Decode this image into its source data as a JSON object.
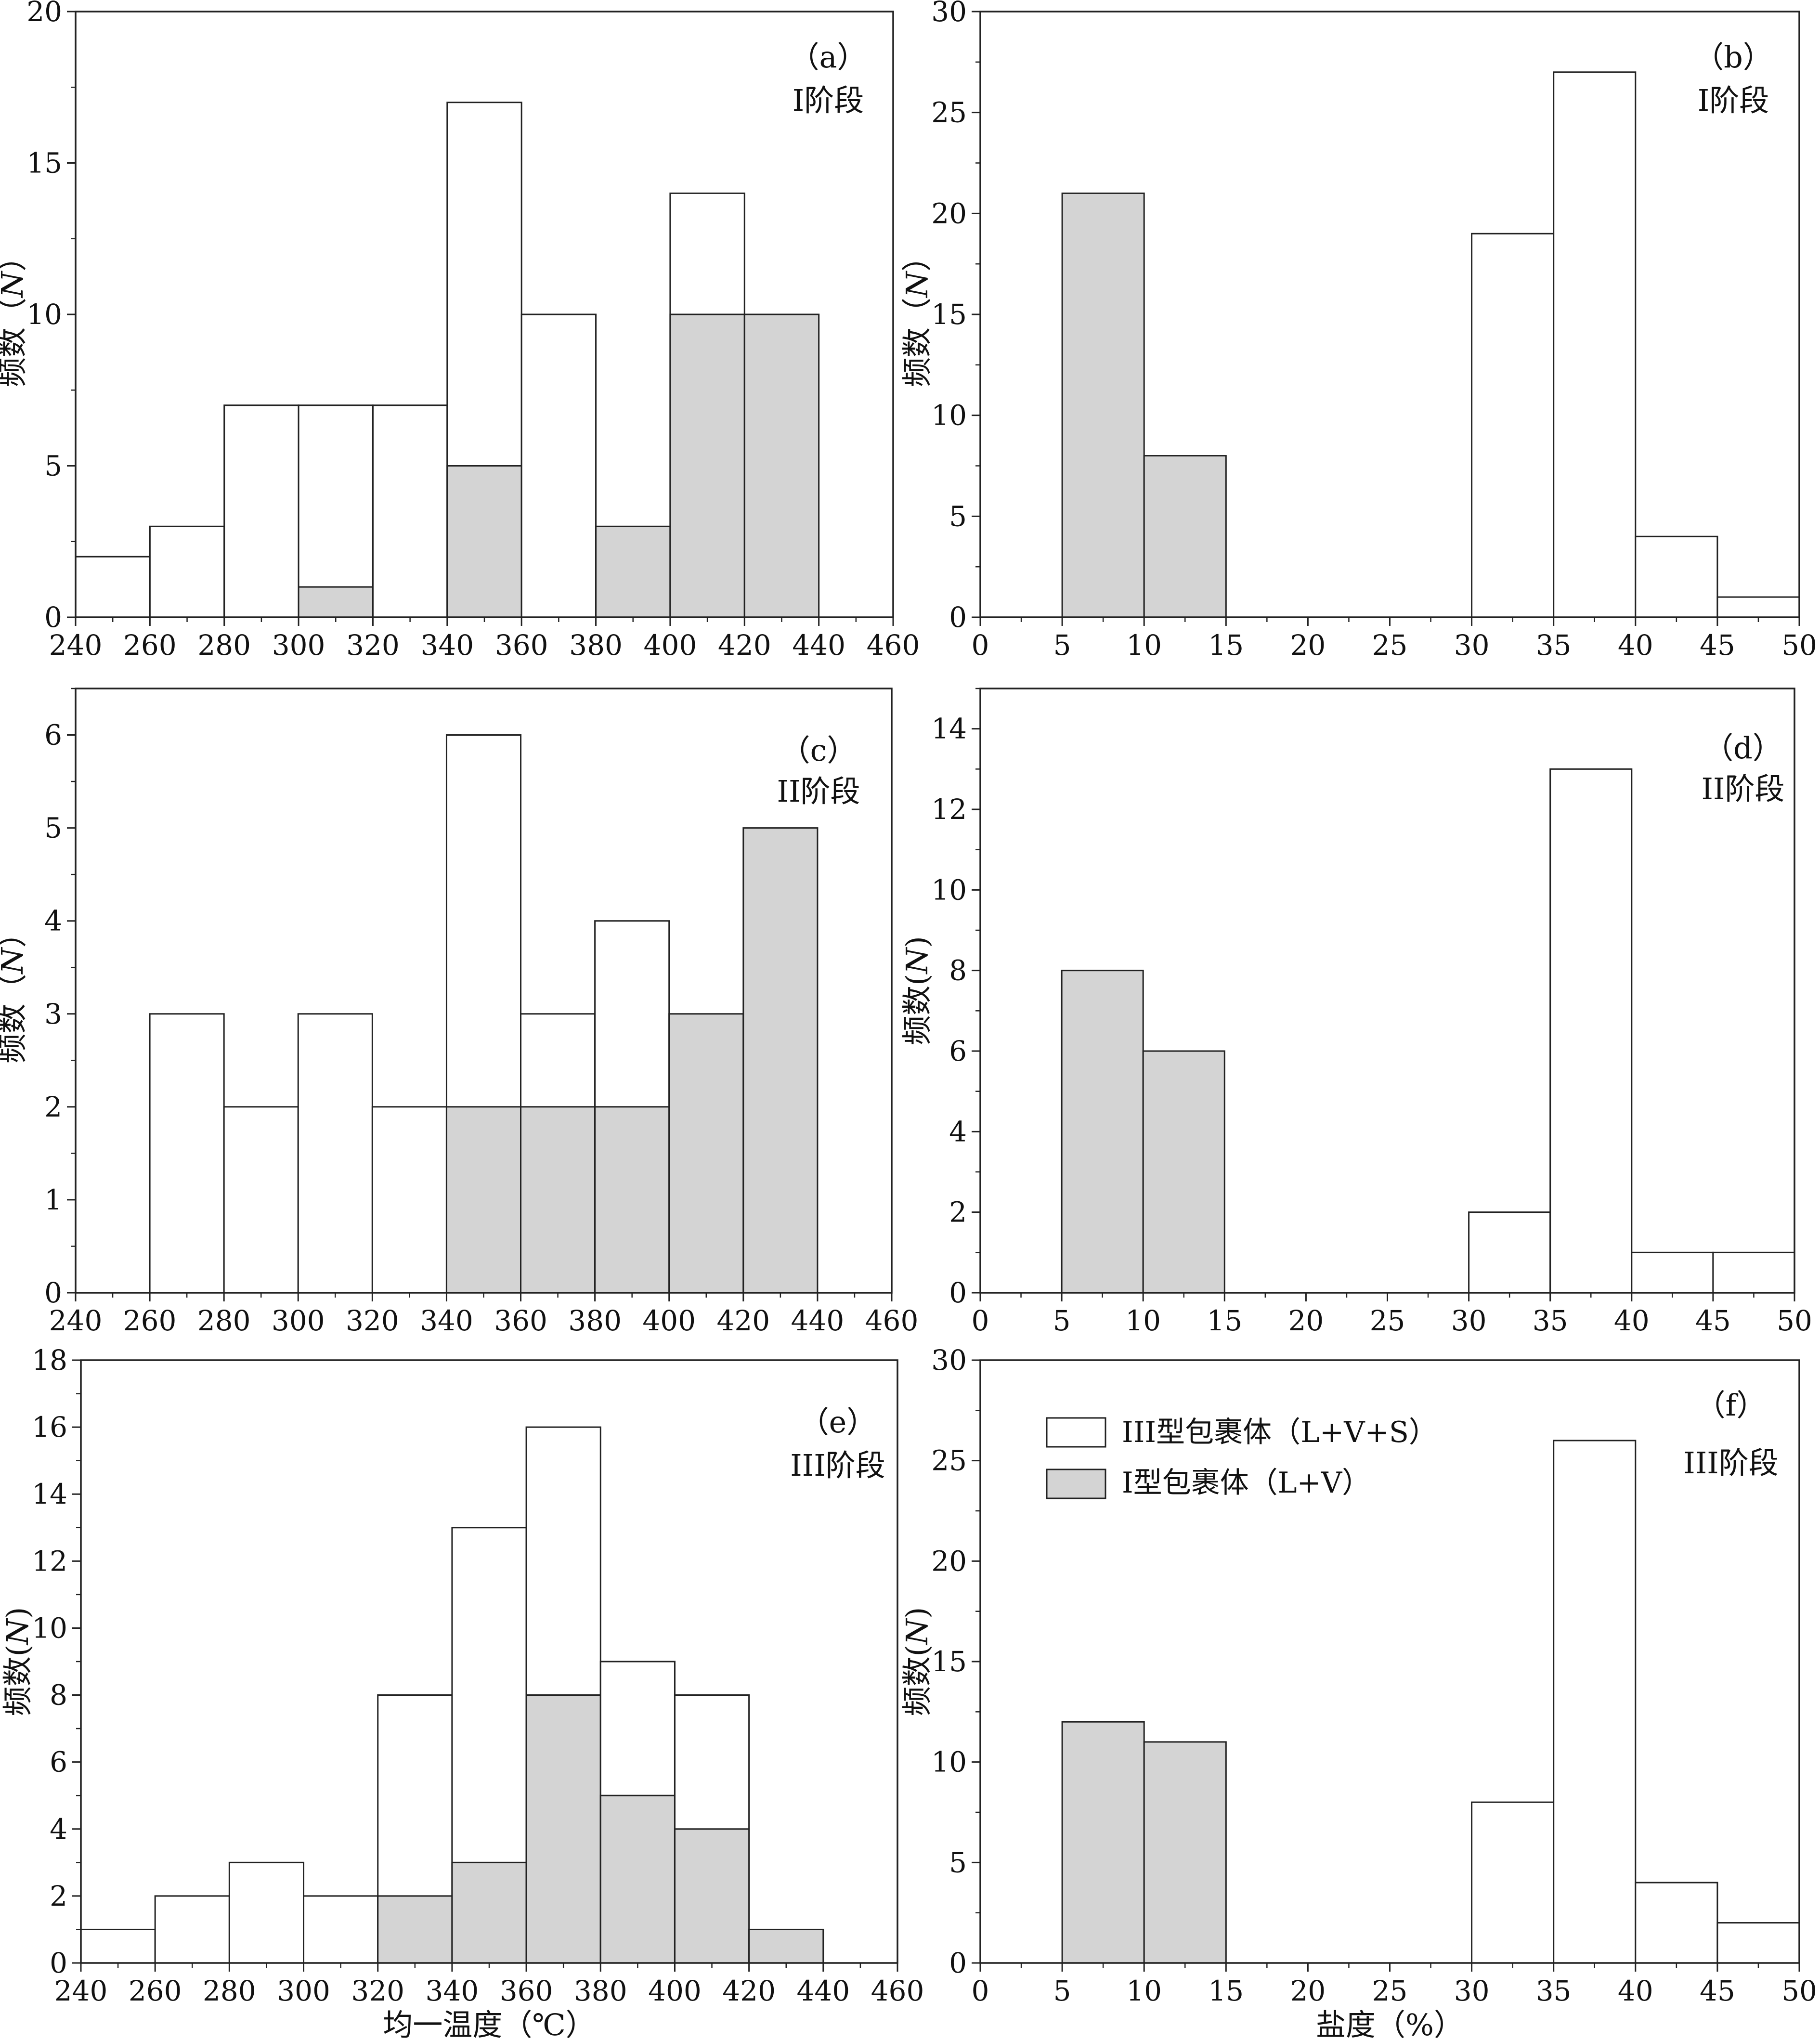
{
  "colors": {
    "gray_fill": "#d4d4d4",
    "white_fill": "#ffffff",
    "stroke": "#222222"
  },
  "legend": {
    "white_label": "III型包裹体（L+V+S）",
    "gray_label": "I型包裹体（L+V）"
  },
  "chart_data": [
    {
      "id": "a",
      "type": "bar",
      "panel_label": "（a）",
      "stage_label": "I阶段",
      "ylabel_text": "频数",
      "ylabel_unit": "（N）",
      "xlabel": "",
      "xlim": [
        240,
        460
      ],
      "ylim": [
        0,
        20
      ],
      "xticks": [
        240,
        260,
        280,
        300,
        320,
        340,
        360,
        380,
        400,
        420,
        440,
        460
      ],
      "yticks": [
        0,
        5,
        10,
        15,
        20
      ],
      "bin_width": 20,
      "bins": [
        240,
        260,
        280,
        300,
        320,
        340,
        360,
        380,
        400,
        420
      ],
      "totals": [
        2,
        3,
        7,
        7,
        7,
        17,
        10,
        3,
        14,
        10
      ],
      "gray": [
        0,
        0,
        0,
        1,
        0,
        5,
        0,
        3,
        10,
        10
      ]
    },
    {
      "id": "b",
      "type": "bar",
      "panel_label": "（b）",
      "stage_label": "I阶段",
      "ylabel_text": "频数",
      "ylabel_unit": "（N）",
      "xlabel": "",
      "xlim": [
        0,
        50
      ],
      "ylim": [
        0,
        30
      ],
      "xticks": [
        0,
        5,
        10,
        15,
        20,
        25,
        30,
        35,
        40,
        45,
        50
      ],
      "yticks": [
        0,
        5,
        10,
        15,
        20,
        25,
        30
      ],
      "bin_width": 5,
      "bins": [
        5,
        10,
        30,
        35,
        40,
        45
      ],
      "totals": [
        21,
        8,
        19,
        27,
        4,
        1
      ],
      "gray": [
        21,
        8,
        0,
        0,
        0,
        0
      ]
    },
    {
      "id": "c",
      "type": "bar",
      "panel_label": "（c）",
      "stage_label": "II阶段",
      "ylabel_text": "频数",
      "ylabel_unit": "（N）",
      "xlabel": "",
      "xlim": [
        240,
        460
      ],
      "ylim": [
        0,
        6.5
      ],
      "xticks": [
        240,
        260,
        280,
        300,
        320,
        340,
        360,
        380,
        400,
        420,
        440,
        460
      ],
      "yticks": [
        0,
        1,
        2,
        3,
        4,
        5,
        6
      ],
      "bin_width": 20,
      "bins": [
        260,
        280,
        300,
        320,
        340,
        360,
        380,
        400,
        420
      ],
      "totals": [
        3,
        2,
        3,
        2,
        6,
        3,
        4,
        3,
        5
      ],
      "gray": [
        0,
        0,
        0,
        0,
        2,
        2,
        2,
        3,
        5
      ]
    },
    {
      "id": "d",
      "type": "bar",
      "panel_label": "（d）",
      "stage_label": "II阶段",
      "ylabel_text": "频数",
      "ylabel_unit": "(N)",
      "xlabel": "",
      "xlim": [
        0,
        50
      ],
      "ylim": [
        0,
        15
      ],
      "xticks": [
        0,
        5,
        10,
        15,
        20,
        25,
        30,
        35,
        40,
        45,
        50
      ],
      "yticks": [
        0,
        2,
        4,
        6,
        8,
        10,
        12,
        14
      ],
      "bin_width": 5,
      "bins": [
        5,
        10,
        30,
        35,
        40,
        45
      ],
      "totals": [
        8,
        6,
        2,
        13,
        1,
        1
      ],
      "gray": [
        8,
        6,
        0,
        0,
        0,
        0
      ]
    },
    {
      "id": "e",
      "type": "bar",
      "panel_label": "（e）",
      "stage_label": "III阶段",
      "ylabel_text": "频数",
      "ylabel_unit": "(N)",
      "xlabel": "均一温度（℃）",
      "xlim": [
        240,
        460
      ],
      "ylim": [
        0,
        18
      ],
      "xticks": [
        240,
        260,
        280,
        300,
        320,
        340,
        360,
        380,
        400,
        420,
        440,
        460
      ],
      "yticks": [
        0,
        2,
        4,
        6,
        8,
        10,
        12,
        14,
        16,
        18
      ],
      "bin_width": 20,
      "bins": [
        240,
        260,
        280,
        300,
        320,
        340,
        360,
        380,
        400,
        420
      ],
      "totals": [
        1,
        2,
        3,
        2,
        8,
        13,
        16,
        9,
        8,
        1
      ],
      "gray": [
        0,
        0,
        0,
        0,
        2,
        3,
        8,
        5,
        4,
        1
      ]
    },
    {
      "id": "f",
      "type": "bar",
      "panel_label": "（f）",
      "stage_label": "III阶段",
      "ylabel_text": "频数",
      "ylabel_unit": "(N)",
      "xlabel": "盐度（%）",
      "xlim": [
        0,
        50
      ],
      "ylim": [
        0,
        30
      ],
      "xticks": [
        0,
        5,
        10,
        15,
        20,
        25,
        30,
        35,
        40,
        45,
        50
      ],
      "yticks": [
        0,
        5,
        10,
        15,
        20,
        25,
        30
      ],
      "bin_width": 5,
      "bins": [
        5,
        10,
        30,
        35,
        40,
        45
      ],
      "totals": [
        12,
        11,
        8,
        26,
        4,
        2
      ],
      "gray": [
        12,
        11,
        0,
        0,
        0,
        0
      ],
      "has_legend": true
    }
  ]
}
